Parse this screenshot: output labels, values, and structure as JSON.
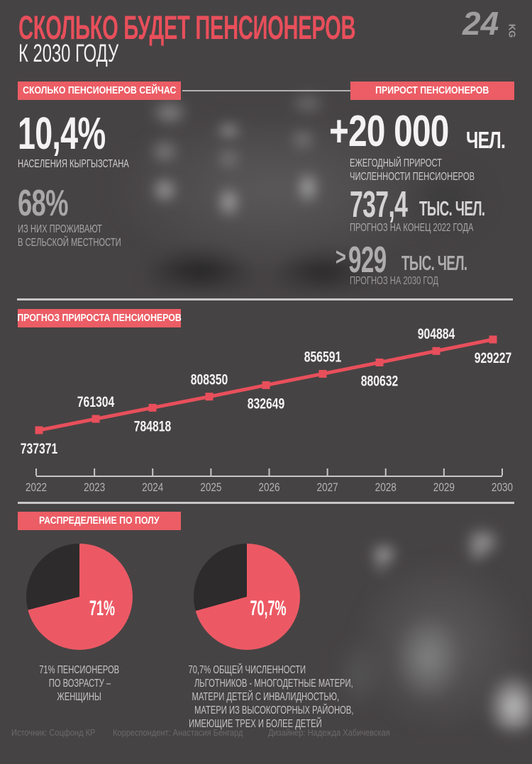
{
  "colors": {
    "background": "#464344",
    "accent_red": "#e84f5b",
    "badge_red": "#ec5d65",
    "pie_red": "#ec5964",
    "pie_dark": "#2d2b2c",
    "axis_gray": "#c8c6c7",
    "white": "#f4f2f3",
    "footer_gray": "#6b696a"
  },
  "header": {
    "title": "СКОЛЬКО БУДЕТ ПЕНСИОНЕРОВ",
    "subtitle": "К 2030 ГОДУ",
    "logo": {
      "number": "24",
      "suffix": "KG"
    }
  },
  "now_section": {
    "badge": "СКОЛЬКО ПЕНСИОНЕРОВ СЕЙЧАС",
    "stat_percent": {
      "value": "10,4%",
      "caption": "НАСЕЛЕНИЯ КЫРГЫЗСТАНА"
    },
    "stat_rural": {
      "value": "68%",
      "caption_line1": "ИЗ НИХ ПРОЖИВАЮТ",
      "caption_line2": "В СЕЛЬСКОЙ МЕСТНОСТИ"
    }
  },
  "growth_section": {
    "badge": "ПРИРОСТ ПЕНСИОНЕРОВ",
    "stat_annual": {
      "value": "+20 000",
      "unit": "ЧЕЛ.",
      "caption_line1": "ЕЖЕГОДНЫЙ ПРИРОСТ",
      "caption_line2": "ЧИСЛЕННОСТИ ПЕНСИОНЕРОВ"
    },
    "stat_2022": {
      "value": "737,4",
      "unit": "ТЫС. ЧЕЛ.",
      "caption": "ПРОГНОЗ НА КОНЕЦ 2022 ГОДА"
    },
    "stat_2030": {
      "prefix": ">",
      "value": "929",
      "unit": "ТЫС. ЧЕЛ.",
      "caption": "ПРОГНОЗ НА 2030 ГОД"
    }
  },
  "forecast_section": {
    "badge": "ПРОГНОЗ ПРИРОСТА ПЕНСИОНЕРОВ"
  },
  "chart_data": [
    {
      "type": "line",
      "title": "ПРОГНОЗ ПРИРОСТА ПЕНСИОНЕРОВ",
      "x": [
        "2022",
        "2023",
        "2024",
        "2025",
        "2026",
        "2027",
        "2028",
        "2029",
        "2030"
      ],
      "values": [
        737371,
        761304,
        784818,
        808350,
        832649,
        856591,
        880632,
        904884,
        929227
      ],
      "ylim": [
        737371,
        929227
      ],
      "line_color": "#e84f5b",
      "marker": "square",
      "data_labels": true,
      "label_alternation": "first-below",
      "axis_color": "#c8c6c7",
      "tick_label_color": "#b5b3b4",
      "grid": false,
      "legend": false
    },
    {
      "type": "pie",
      "shown_label": "71%",
      "values": [
        71,
        29
      ],
      "colors": [
        "#ec5964",
        "#2d2b2c"
      ],
      "start_angle": "top",
      "direction": "clockwise",
      "title": "71% ПЕНСИОНЕРОВ ПО ВОЗРАСТУ – ЖЕНЩИНЫ"
    },
    {
      "type": "pie",
      "shown_label": "70,7%",
      "values": [
        70.7,
        29.3
      ],
      "colors": [
        "#ec5964",
        "#2d2b2c"
      ],
      "start_angle": "top",
      "direction": "clockwise",
      "title": "70,7% ОБЩЕЙ ЧИСЛЕННОСТИ ЛЬГОТНИКОВ - МНОГОДЕТНЫЕ МАТЕРИ, МАТЕРИ ДЕТЕЙ С ИНВАЛИДНОСТЬЮ, МАТЕРИ ИЗ ВЫСОКОГОРНЫХ РАЙОНОВ, ИМЕЮЩИЕ ТРЕХ И БОЛЕЕ ДЕТЕЙ"
    }
  ],
  "gender_section": {
    "badge": "РАСПРЕДЕЛЕНИЕ ПО ПОЛУ",
    "pies": [
      {
        "label": "71%",
        "caption_lines": [
          "71% ПЕНСИОНЕРОВ",
          "ПО ВОЗРАСТУ –",
          "ЖЕНЩИНЫ"
        ]
      },
      {
        "label": "70,7%",
        "caption_lines": [
          "70,7% ОБЩЕЙ ЧИСЛЕННОСТИ",
          "ЛЬГОТНИКОВ - МНОГОДЕТНЫЕ МАТЕРИ,",
          "МАТЕРИ ДЕТЕЙ С ИНВАЛИДНОСТЬЮ,",
          "МАТЕРИ ИЗ ВЫСОКОГОРНЫХ РАЙОНОВ,",
          "ИМЕЮЩИЕ ТРЕХ И БОЛЕЕ ДЕТЕЙ"
        ]
      }
    ]
  },
  "footer": {
    "source": "Источник: Соцфонд КР",
    "correspondent": "Корреспондент: Анастасия Бенгард",
    "designer": "Дизайнер: Надежда Хабичевская"
  }
}
